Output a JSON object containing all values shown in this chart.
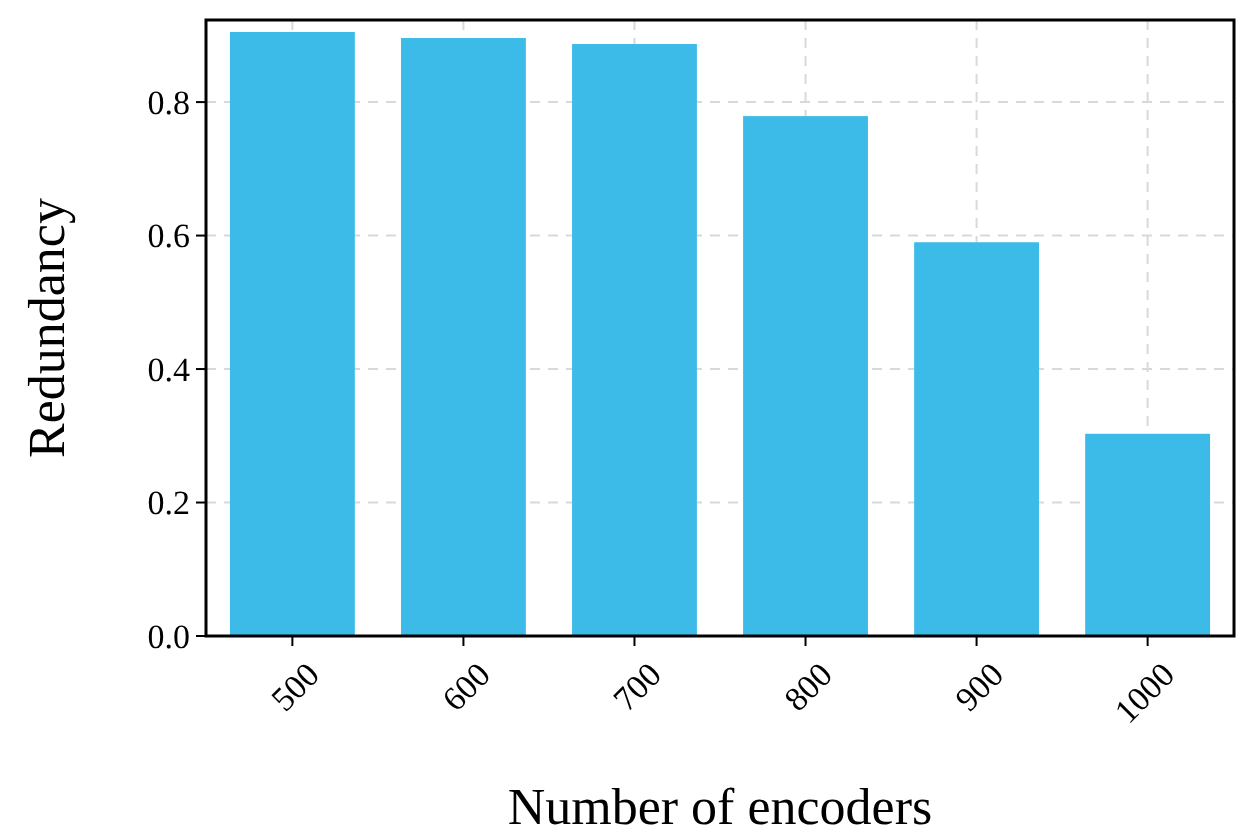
{
  "chart_data": {
    "type": "bar",
    "xlabel": "Number of encoders",
    "ylabel": "Redundancy",
    "categories": [
      "500",
      "600",
      "700",
      "800",
      "900",
      "1000"
    ],
    "values": [
      0.905,
      0.896,
      0.887,
      0.779,
      0.59,
      0.303
    ],
    "color": "#3dbbe8",
    "ylim": [
      0,
      0.923
    ],
    "yticks": [
      {
        "value": 0,
        "label": "0.0"
      },
      {
        "value": 0.2,
        "label": "0.2"
      },
      {
        "value": 0.4,
        "label": "0.4"
      },
      {
        "value": 0.6,
        "label": "0.6"
      },
      {
        "value": 0.8,
        "label": "0.8"
      }
    ],
    "grid": true
  }
}
